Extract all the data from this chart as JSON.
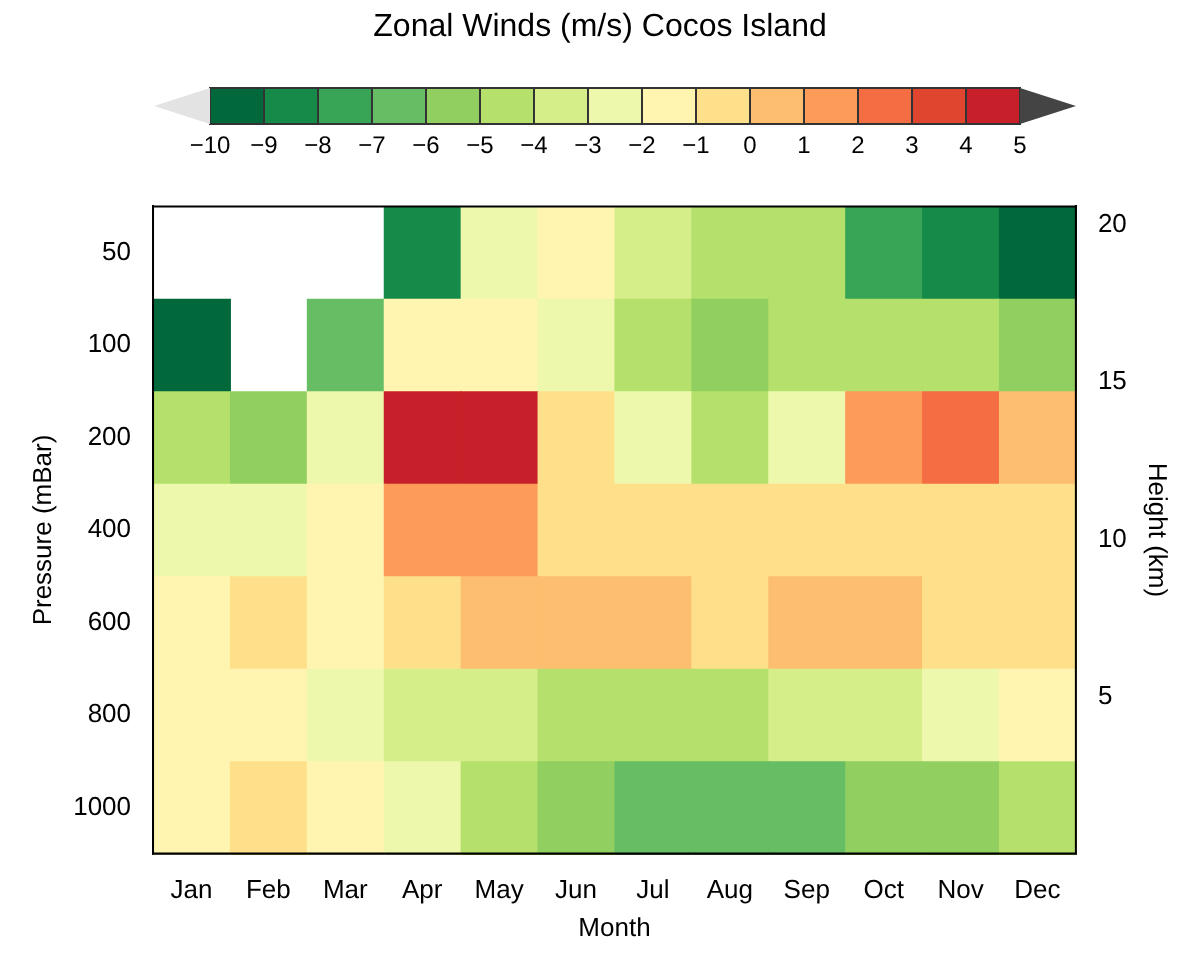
{
  "chart_data": {
    "type": "heatmap",
    "title": "Zonal Winds (m/s) Cocos Island",
    "xlabel": "Month",
    "ylabel": "Pressure (mBar)",
    "y2label": "Height (km)",
    "categories": [
      "Jan",
      "Feb",
      "Mar",
      "Apr",
      "May",
      "Jun",
      "Jul",
      "Aug",
      "Sep",
      "Oct",
      "Nov",
      "Dec"
    ],
    "y_categories": [
      "50",
      "100",
      "200",
      "400",
      "600",
      "800",
      "1000"
    ],
    "cells": [
      [
        null,
        null,
        null,
        -9,
        -3,
        -2,
        -3.5,
        -4.5,
        -5,
        -7.5,
        -9,
        -9.5
      ],
      [
        -10,
        null,
        -7,
        -2,
        -1.5,
        -2.5,
        -4.5,
        -5.5,
        -5,
        -5,
        -4.5,
        -6
      ],
      [
        -4.5,
        -5.5,
        -3,
        4.5,
        4.5,
        -0.5,
        -3,
        -4.5,
        -2.5,
        1.5,
        2.5,
        0.5
      ],
      [
        -2.5,
        -2.5,
        -2,
        1,
        1.5,
        -0.5,
        -0.5,
        -1,
        -1,
        -0.5,
        -0.5,
        -1
      ],
      [
        -1.5,
        -0.5,
        -1.5,
        -1,
        0,
        0,
        0,
        -0.5,
        0,
        0,
        -0.5,
        -1
      ],
      [
        -2,
        -1.5,
        -2.5,
        -3.5,
        -4,
        -4.5,
        -4.5,
        -4.5,
        -4,
        -3.5,
        -2.5,
        -2
      ],
      [
        -2,
        -1,
        -1.5,
        -3,
        -5,
        -6,
        -7,
        -7,
        -6.5,
        -6,
        -5.5,
        -5
      ]
    ],
    "colors": [
      "#e3e3e3",
      "#00683a",
      "#168a48",
      "#37a555",
      "#66bd63",
      "#91cf60",
      "#b4e06b",
      "#d6ee8a",
      "#eef8ac",
      "#fff5b0",
      "#fee08b",
      "#fdbe6f",
      "#fc9c58",
      "#f46d43",
      "#e04530",
      "#c8202a",
      "#444444"
    ],
    "clim": [
      -10,
      5
    ],
    "cticks": [
      {
        "value": -10,
        "label": "−10"
      },
      {
        "value": -9,
        "label": "−9"
      },
      {
        "value": -8,
        "label": "−8"
      },
      {
        "value": -7,
        "label": "−7"
      },
      {
        "value": -6,
        "label": "−6"
      },
      {
        "value": -5,
        "label": "−5"
      },
      {
        "value": -4,
        "label": "−4"
      },
      {
        "value": -3,
        "label": "−3"
      },
      {
        "value": -2,
        "label": "−2"
      },
      {
        "value": -1,
        "label": "−1"
      },
      0,
      1,
      2,
      3,
      4,
      5
    ],
    "y2lim": [
      0,
      20.6
    ],
    "y2ticks": [
      5,
      10,
      15,
      20
    ],
    "legend": false,
    "grid": false
  }
}
